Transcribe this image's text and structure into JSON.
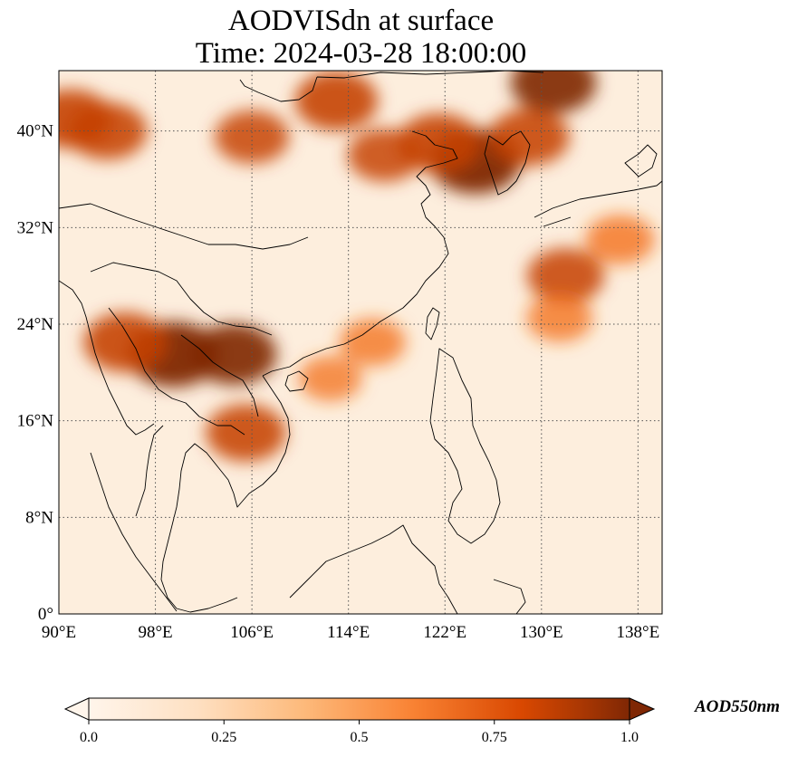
{
  "title": {
    "line1": "AODVISdn at surface",
    "line2": "Time: 2024-03-28 18:00:00"
  },
  "map": {
    "lon_range": [
      90,
      140
    ],
    "lat_range": [
      0,
      45
    ],
    "x_ticks": [
      {
        "value": 90,
        "label": "90°E"
      },
      {
        "value": 98,
        "label": "98°E"
      },
      {
        "value": 106,
        "label": "106°E"
      },
      {
        "value": 114,
        "label": "114°E"
      },
      {
        "value": 122,
        "label": "122°E"
      },
      {
        "value": 130,
        "label": "130°E"
      },
      {
        "value": 138,
        "label": "138°E"
      }
    ],
    "y_ticks": [
      {
        "value": 0,
        "label": "0°"
      },
      {
        "value": 8,
        "label": "8°N"
      },
      {
        "value": 16,
        "label": "16°N"
      },
      {
        "value": 24,
        "label": "24°N"
      },
      {
        "value": 32,
        "label": "32°N"
      },
      {
        "value": 40,
        "label": "40°N"
      }
    ],
    "gridlines": true,
    "colormap": [
      "#fff5eb",
      "#fdd9b4",
      "#fda762",
      "#f3701b",
      "#c54102",
      "#7f2704"
    ],
    "aod_hotspots": [
      {
        "lon": 99.5,
        "lat": 21.5,
        "value": 1.0
      },
      {
        "lon": 95.5,
        "lat": 22.5,
        "value": 0.85
      },
      {
        "lon": 104.5,
        "lat": 21.5,
        "value": 0.9
      },
      {
        "lon": 105.5,
        "lat": 15.0,
        "value": 0.8
      },
      {
        "lon": 124.5,
        "lat": 37.5,
        "value": 1.0
      },
      {
        "lon": 121.5,
        "lat": 39.0,
        "value": 0.85
      },
      {
        "lon": 117.0,
        "lat": 38.0,
        "value": 0.7
      },
      {
        "lon": 131.0,
        "lat": 44.0,
        "value": 0.9
      },
      {
        "lon": 129.0,
        "lat": 39.5,
        "value": 0.8
      },
      {
        "lon": 113.0,
        "lat": 42.5,
        "value": 0.85
      },
      {
        "lon": 106.0,
        "lat": 39.5,
        "value": 0.7
      },
      {
        "lon": 91.0,
        "lat": 41.0,
        "value": 0.85
      },
      {
        "lon": 94.0,
        "lat": 40.0,
        "value": 0.8
      },
      {
        "lon": 132.0,
        "lat": 28.0,
        "value": 0.75
      },
      {
        "lon": 136.5,
        "lat": 31.0,
        "value": 0.6
      },
      {
        "lon": 131.5,
        "lat": 24.5,
        "value": 0.55
      },
      {
        "lon": 116.0,
        "lat": 22.5,
        "value": 0.55
      },
      {
        "lon": 112.5,
        "lat": 19.5,
        "value": 0.5
      }
    ]
  },
  "colorbar": {
    "label": "AOD550nm",
    "ticks": [
      "0.0",
      "0.25",
      "0.5",
      "0.75",
      "1.0"
    ],
    "extend": "both"
  }
}
